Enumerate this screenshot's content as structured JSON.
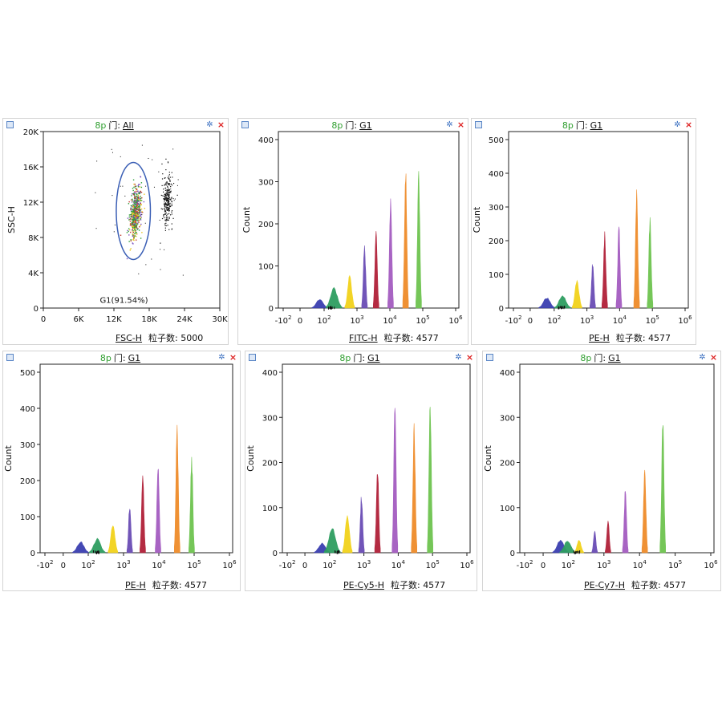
{
  "ui": {
    "gate_label": "门:",
    "count_label": "粒子数:",
    "settings_icon": "gear-icon",
    "close_icon": "close-icon",
    "window_icon": "window-icon"
  },
  "chart_data": [
    {
      "type": "scatter",
      "panel_title": "8p",
      "gate": "All",
      "xlabel": "FSC-H",
      "ylabel": "SSC-H",
      "count": "5000",
      "xlim": [
        0,
        30000
      ],
      "ylim": [
        0,
        20000
      ],
      "x_ticks": [
        "0",
        "6K",
        "12K",
        "18K",
        "24K",
        "30K"
      ],
      "y_ticks": [
        "0",
        "4K",
        "8K",
        "12K",
        "16K",
        "20K"
      ],
      "gate_region": {
        "name": "G1(91.54%)",
        "center": [
          15300,
          11000
        ],
        "rx": 2900,
        "ry": 5500,
        "color": "#3b5fb5"
      },
      "populations": [
        {
          "name": "gated",
          "center": [
            15600,
            10800
          ],
          "spread": [
            900,
            2400
          ],
          "color": "#2e9e3a"
        },
        {
          "name": "outside",
          "center": [
            21000,
            12300
          ],
          "spread": [
            800,
            2000
          ],
          "color": "#111111"
        }
      ]
    },
    {
      "type": "histogram",
      "panel_title": "8p",
      "gate": "G1",
      "xlabel": "FITC-H",
      "ylabel": "Count",
      "count": "4577",
      "xlim_log": [
        -2,
        6
      ],
      "ylim": [
        0,
        400
      ],
      "y_ticks": [
        "0",
        "100",
        "200",
        "300",
        "400"
      ],
      "x_ticks": [
        {
          "base": "-10",
          "exp": "2"
        },
        {
          "base": "0",
          "exp": ""
        },
        {
          "base": "10",
          "exp": "2"
        },
        {
          "base": "10",
          "exp": "3"
        },
        {
          "base": "10",
          "exp": "4"
        },
        {
          "base": "10",
          "exp": "5"
        },
        {
          "base": "10",
          "exp": "6"
        }
      ],
      "peaks": [
        {
          "x": 50,
          "height": 22,
          "color": "#3b3fb0"
        },
        {
          "x": 200,
          "height": 50,
          "color": "#2e9e60"
        },
        {
          "x": 600,
          "height": 80,
          "color": "#f2d21b"
        },
        {
          "x": 1700,
          "height": 155,
          "color": "#6a4cb5"
        },
        {
          "x": 3800,
          "height": 192,
          "color": "#b02038"
        },
        {
          "x": 10500,
          "height": 278,
          "color": "#a45cc0"
        },
        {
          "x": 30000,
          "height": 340,
          "color": "#ef8c2a"
        },
        {
          "x": 75000,
          "height": 344,
          "color": "#6ec450"
        }
      ]
    },
    {
      "type": "histogram",
      "panel_title": "8p",
      "gate": "G1",
      "xlabel": "PE-H",
      "ylabel": "Count",
      "count": "4577",
      "xlim_log": [
        -2,
        6
      ],
      "ylim": [
        0,
        500
      ],
      "y_ticks": [
        "0",
        "100",
        "200",
        "300",
        "400",
        "500"
      ],
      "x_ticks": [
        {
          "base": "-10",
          "exp": "2"
        },
        {
          "base": "0",
          "exp": ""
        },
        {
          "base": "10",
          "exp": "2"
        },
        {
          "base": "10",
          "exp": "3"
        },
        {
          "base": "10",
          "exp": "4"
        },
        {
          "base": "10",
          "exp": "5"
        },
        {
          "base": "10",
          "exp": "6"
        }
      ],
      "peaks": [
        {
          "x": 30,
          "height": 32,
          "color": "#3b3fb0"
        },
        {
          "x": 180,
          "height": 40,
          "color": "#2e9e60"
        },
        {
          "x": 500,
          "height": 85,
          "color": "#f2d21b"
        },
        {
          "x": 1500,
          "height": 138,
          "color": "#6a4cb5"
        },
        {
          "x": 3500,
          "height": 228,
          "color": "#b02038"
        },
        {
          "x": 9500,
          "height": 255,
          "color": "#a45cc0"
        },
        {
          "x": 33000,
          "height": 365,
          "color": "#ef8c2a"
        },
        {
          "x": 85000,
          "height": 278,
          "color": "#6ec450"
        }
      ]
    },
    {
      "type": "histogram",
      "panel_title": "8p",
      "gate": "G1",
      "xlabel": "PE-H",
      "ylabel": "Count",
      "count": "4577",
      "xlim_log": [
        -2,
        6
      ],
      "ylim": [
        0,
        500
      ],
      "y_ticks": [
        "0",
        "100",
        "200",
        "300",
        "400",
        "500"
      ],
      "x_ticks": [
        {
          "base": "-10",
          "exp": "2"
        },
        {
          "base": "0",
          "exp": ""
        },
        {
          "base": "10",
          "exp": "2"
        },
        {
          "base": "10",
          "exp": "3"
        },
        {
          "base": "10",
          "exp": "4"
        },
        {
          "base": "10",
          "exp": "5"
        },
        {
          "base": "10",
          "exp": "6"
        }
      ],
      "peaks": [
        {
          "x": 30,
          "height": 32,
          "color": "#3b3fb0"
        },
        {
          "x": 180,
          "height": 40,
          "color": "#2e9e60"
        },
        {
          "x": 500,
          "height": 85,
          "color": "#f2d21b"
        },
        {
          "x": 1500,
          "height": 138,
          "color": "#6a4cb5"
        },
        {
          "x": 3500,
          "height": 228,
          "color": "#b02038"
        },
        {
          "x": 9500,
          "height": 255,
          "color": "#a45cc0"
        },
        {
          "x": 33000,
          "height": 365,
          "color": "#ef8c2a"
        },
        {
          "x": 85000,
          "height": 278,
          "color": "#6ec450"
        }
      ]
    },
    {
      "type": "histogram",
      "panel_title": "8p",
      "gate": "G1",
      "xlabel": "PE-Cy5-H",
      "ylabel": "Count",
      "count": "4577",
      "xlim_log": [
        -2,
        6
      ],
      "ylim": [
        0,
        400
      ],
      "y_ticks": [
        "0",
        "100",
        "200",
        "300",
        "400"
      ],
      "x_ticks": [
        {
          "base": "-10",
          "exp": "2"
        },
        {
          "base": "0",
          "exp": ""
        },
        {
          "base": "10",
          "exp": "2"
        },
        {
          "base": "10",
          "exp": "3"
        },
        {
          "base": "10",
          "exp": "4"
        },
        {
          "base": "10",
          "exp": "5"
        },
        {
          "base": "10",
          "exp": "6"
        }
      ],
      "peaks": [
        {
          "x": 30,
          "height": 22,
          "color": "#3b3fb0"
        },
        {
          "x": 120,
          "height": 58,
          "color": "#2e9e60"
        },
        {
          "x": 330,
          "height": 90,
          "color": "#f2d21b"
        },
        {
          "x": 850,
          "height": 132,
          "color": "#6a4cb5"
        },
        {
          "x": 2500,
          "height": 200,
          "color": "#b02038"
        },
        {
          "x": 8000,
          "height": 338,
          "color": "#a45cc0"
        },
        {
          "x": 29000,
          "height": 290,
          "color": "#ef8c2a"
        },
        {
          "x": 85000,
          "height": 352,
          "color": "#6ec450"
        }
      ]
    },
    {
      "type": "histogram",
      "panel_title": "8p",
      "gate": "G1",
      "xlabel": "PE-Cy7-H",
      "ylabel": "Count",
      "count": "4577",
      "xlim_log": [
        -2,
        6
      ],
      "ylim": [
        0,
        400
      ],
      "y_ticks": [
        "0",
        "100",
        "200",
        "300",
        "400"
      ],
      "x_ticks": [
        {
          "base": "-10",
          "exp": "2"
        },
        {
          "base": "0",
          "exp": ""
        },
        {
          "base": "10",
          "exp": "2"
        },
        {
          "base": "10",
          "exp": "3"
        },
        {
          "base": "10",
          "exp": "4"
        },
        {
          "base": "10",
          "exp": "5"
        },
        {
          "base": "10",
          "exp": "6"
        }
      ],
      "peaks": [
        {
          "x": 30,
          "height": 30,
          "color": "#3b3fb0"
        },
        {
          "x": 90,
          "height": 28,
          "color": "#2e9e60"
        },
        {
          "x": 200,
          "height": 30,
          "color": "#f2d21b"
        },
        {
          "x": 550,
          "height": 52,
          "color": "#6a4cb5"
        },
        {
          "x": 1300,
          "height": 76,
          "color": "#b02038"
        },
        {
          "x": 4000,
          "height": 145,
          "color": "#a45cc0"
        },
        {
          "x": 14000,
          "height": 200,
          "color": "#ef8c2a"
        },
        {
          "x": 45000,
          "height": 310,
          "color": "#6ec450"
        }
      ]
    }
  ]
}
